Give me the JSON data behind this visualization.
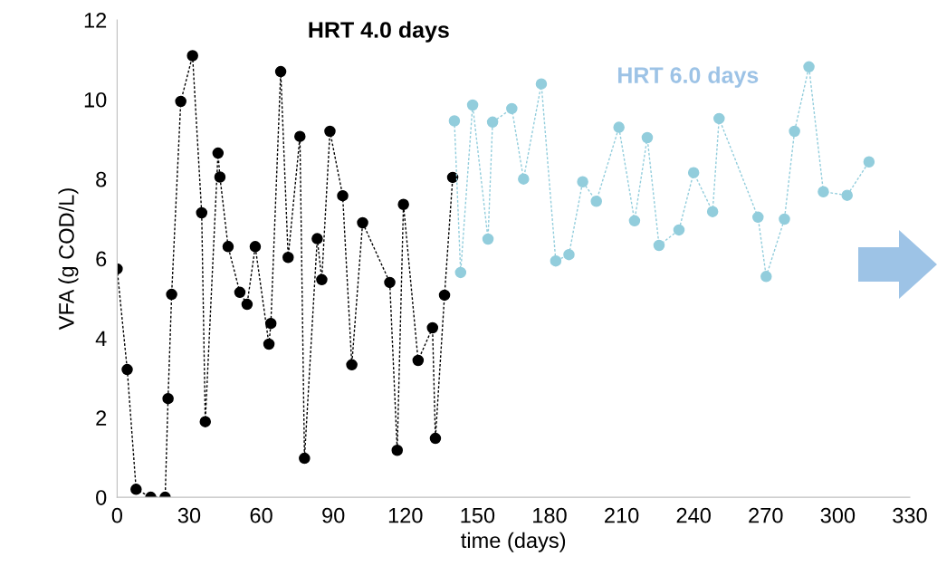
{
  "chart_data": {
    "type": "line",
    "xlabel": "time (days)",
    "ylabel": "VFA (g COD/L)",
    "xlim": [
      0,
      330
    ],
    "xticks": [
      0,
      30,
      60,
      90,
      120,
      150,
      180,
      210,
      240,
      270,
      300,
      330
    ],
    "ylim": [
      0,
      12
    ],
    "yticks": [
      0,
      2,
      4,
      6,
      8,
      10,
      12
    ],
    "grid": false,
    "legend": false,
    "marker": "circle",
    "line_style": "dashed",
    "annotations": [
      "HRT 4.0 days",
      "HRT 6.0 days"
    ],
    "series": [
      {
        "color": "#000000",
        "x": [
          0,
          4.2,
          7.9,
          14,
          20,
          21.2,
          22.7,
          26.5,
          31.4,
          35.2,
          36.7,
          42,
          42.8,
          46.2,
          51.1,
          54.1,
          57.5,
          63.2,
          64,
          68.1,
          71.2,
          76.1,
          78,
          83.3,
          85.2,
          88.6,
          93.9,
          97.7,
          102.2,
          113.5,
          116.6,
          119.2,
          125.3,
          131.3,
          132.5,
          136.3,
          139.7
        ],
        "values": [
          5.74,
          3.21,
          0.2,
          0,
          0,
          2.48,
          5.1,
          9.95,
          11.1,
          7.15,
          1.9,
          8.65,
          8.05,
          6.3,
          5.15,
          4.85,
          6.3,
          3.85,
          4.37,
          10.7,
          6.03,
          9.07,
          0.98,
          6.5,
          5.47,
          9.2,
          7.58,
          3.33,
          6.9,
          5.4,
          1.18,
          7.36,
          3.44,
          4.26,
          1.48,
          5.08,
          8.04
        ]
      },
      {
        "color": "#92cddc",
        "x": [
          140.4,
          143,
          148,
          154.4,
          156.3,
          164.3,
          169.2,
          176.6,
          182.6,
          188.1,
          193.8,
          199.5,
          208.9,
          215.4,
          220.7,
          225.6,
          233.9,
          240,
          247.9,
          250.6,
          266.8,
          270.2,
          277.8,
          282,
          288,
          294,
          303.9,
          313
        ],
        "values": [
          9.46,
          5.65,
          9.86,
          6.49,
          9.43,
          9.77,
          8.0,
          10.39,
          5.94,
          6.1,
          7.93,
          7.44,
          9.3,
          6.95,
          9.04,
          6.33,
          6.72,
          8.16,
          7.18,
          9.52,
          7.04,
          5.55,
          6.99,
          9.2,
          10.82,
          7.68,
          7.59,
          8.43
        ]
      }
    ]
  }
}
